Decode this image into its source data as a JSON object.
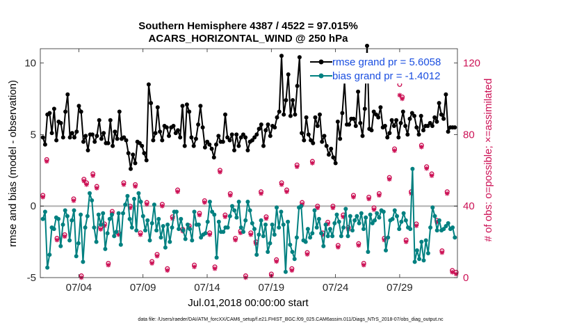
{
  "chart_data": {
    "type": "line",
    "title": [
      "Southern Hemisphere 4387 / 4522 = 97.015%",
      "ACARS_HORIZONTAL_WIND @ 250 hPa"
    ],
    "xlabel": "Jul.01,2018 00:00:00 start",
    "ylabel_left": "rmse and bias (model - observation)",
    "ylabel_right": "# of obs: o=possible; ×=assimilated",
    "x_ticks": [
      "07/04",
      "07/09",
      "07/14",
      "07/19",
      "07/24",
      "07/29"
    ],
    "x_tick_days": [
      4,
      9,
      14,
      19,
      24,
      29
    ],
    "xlim": [
      1.0,
      33.5
    ],
    "ylim_left": [
      -5,
      11
    ],
    "yticks_left": [
      -5,
      0,
      5,
      10
    ],
    "ylim_right": [
      0,
      128
    ],
    "yticks_right": [
      0,
      40,
      80,
      120
    ],
    "colors": {
      "rmse": "#000000",
      "bias": "#008080",
      "obs": "#cc1155",
      "zero": "#b0b0b0"
    },
    "series": [
      {
        "name": "rmse grand pr = 5.6058",
        "axis": "left",
        "values": [
          4.8,
          4.3,
          6.4,
          6.5,
          5.1,
          6.8,
          4.6,
          5.9,
          5.8,
          4.8,
          6.6,
          7.8,
          4.8,
          5.1,
          4.8,
          5.2,
          7.0,
          6.6,
          4.5,
          4.9,
          3.9,
          5.0,
          5.0,
          4.5,
          4.9,
          6.0,
          4.7,
          5.1,
          4.4,
          4.4,
          6.0,
          4.2,
          5.2,
          4.7,
          6.6,
          4.7,
          4.8,
          4.6,
          3.7,
          2.6,
          3.6,
          3.0,
          4.5,
          4.4,
          4.2,
          3.7,
          3.2,
          8.5,
          7.2,
          4.6,
          5.1,
          6.9,
          5.2,
          4.6,
          5.6,
          5.5,
          4.9,
          5.5,
          5.6,
          5.1,
          5.3,
          4.8,
          7.0,
          4.2,
          7.1,
          6.6,
          4.8,
          4.2,
          4.7,
          5.7,
          7.0,
          5.5,
          4.1,
          4.5,
          4.3,
          4.0,
          3.4,
          4.3,
          4.9,
          4.5,
          4.5,
          6.4,
          4.8,
          4.6,
          5.0,
          3.9,
          5.0,
          4.2,
          4.8,
          5.0,
          4.8,
          3.9,
          4.5,
          4.6,
          4.8,
          5.0,
          5.4,
          5.7,
          4.2,
          5.3,
          5.7,
          4.9,
          5.6,
          5.5,
          6.2,
          6.6,
          10.5,
          6.4,
          7.4,
          9.2,
          6.3,
          7.4,
          6.4,
          8.4,
          10.4,
          5.1,
          4.6,
          6.2,
          5.0,
          4.6,
          4.4,
          6.2,
          5.6,
          6.4,
          4.5,
          4.9,
          4.2,
          3.6,
          4.0,
          3.4,
          3.0,
          5.9,
          4.7,
          6.5,
          8.7,
          5.7,
          5.7,
          6.1,
          6.1,
          5.6,
          8.0,
          5.8,
          4.9,
          6.8,
          11.2,
          5.4,
          5.3,
          6.6,
          6.4,
          6.2,
          6.9,
          5.5,
          5.6,
          4.8,
          5.1,
          6.0,
          5.6,
          6.0,
          4.8,
          5.8,
          6.6,
          5.6,
          5.0,
          6.1,
          6.5,
          6.3,
          5.5,
          5.0,
          6.3,
          5.3,
          5.6,
          5.6,
          5.8,
          5.6,
          6.2,
          5.9,
          7.2,
          6.4,
          6.1,
          7.8,
          5.2,
          5.5,
          5.5,
          5.5
        ]
      },
      {
        "name": "bias grand pr = -1.4012",
        "axis": "left",
        "values": [
          -0.9,
          -0.4,
          -4.3,
          -3.4,
          -1.5,
          -1.6,
          -0.8,
          -0.9,
          -2.8,
          -1.3,
          -0.3,
          -0.7,
          -2.4,
          -1.0,
          -0.3,
          -3.5,
          -2.6,
          -0.6,
          -3.9,
          -1.5,
          -0.7,
          0.9,
          0.4,
          -1.5,
          -2.5,
          -0.6,
          -1.3,
          -0.5,
          -3.0,
          -1.9,
          -0.9,
          -0.6,
          -2.1,
          -1.8,
          -0.5,
          -2.7,
          -0.5,
          0.1,
          0.7,
          -0.9,
          -1.5,
          0.5,
          -1.7,
          0.9,
          0.3,
          -0.7,
          -1.7,
          -1.0,
          -2.4,
          -1.2,
          0.1,
          -1.7,
          -0.9,
          -2.2,
          -1.4,
          -2.9,
          -1.3,
          -2.5,
          -1.5,
          -0.4,
          -0.4,
          -1.6,
          -0.9,
          -1.7,
          -2.3,
          -1.3,
          -1.6,
          -2.4,
          -0.4,
          -1.3,
          -1.3,
          -2.2,
          -2.0,
          -1.9,
          -1.1,
          0.3,
          -0.4,
          -0.6,
          -3.6,
          -1.1,
          -1.8,
          -1.8,
          -1.5,
          -1.5,
          -0.7,
          0.0,
          -0.3,
          -0.8,
          0.3,
          -1.5,
          -1.8,
          -1.0,
          0.3,
          -0.3,
          -1.2,
          -1.6,
          -3.4,
          -2.0,
          -1.0,
          -2.1,
          -1.3,
          -3.2,
          -2.6,
          -1.3,
          -2.0,
          -0.1,
          -1.5,
          -0.4,
          -1.3,
          -4.6,
          -1.1,
          -2.7,
          -3.2,
          -3.7,
          -2.2,
          -0.1,
          0.0,
          -2.4,
          -2.5,
          -1.6,
          -2.2,
          -1.9,
          -0.3,
          -1.5,
          -0.9,
          -1.9,
          -2.8,
          -1.3,
          -2.1,
          -1.6,
          -2.1,
          -1.2,
          -0.6,
          -1.1,
          -2.1,
          -1.5,
          -0.2,
          -2.1,
          -0.7,
          -1.7,
          -1.0,
          -0.7,
          -1.2,
          -0.5,
          -1.6,
          -0.8,
          -3.2,
          -0.6,
          -1.2,
          -1.0,
          -0.5,
          -0.8,
          -0.3,
          -0.4,
          -3.1,
          -2.2,
          -1.0,
          -0.9,
          -0.3,
          -0.7,
          -1.6,
          -1.1,
          -0.5,
          -1.0,
          -1.5,
          -1.6,
          2.6,
          -3.9,
          -3.1,
          -3.7,
          -2.5,
          -3.8,
          -2.4,
          -3.3,
          -1.5,
          -0.1,
          -0.7,
          -1.7,
          -1.0,
          -1.7,
          -1.6,
          -1.4,
          -1.2,
          -1.6,
          -1.5,
          -2.2
        ]
      }
    ],
    "obs_possible": [
      [
        1.2,
        46
      ],
      [
        1.5,
        66
      ],
      [
        2.3,
        22
      ],
      [
        2.9,
        24
      ],
      [
        3.6,
        44
      ],
      [
        4.2,
        1
      ],
      [
        4.4,
        55
      ],
      [
        4.6,
        53
      ],
      [
        5.1,
        58
      ],
      [
        5.4,
        51
      ],
      [
        5.7,
        28
      ],
      [
        6.0,
        30
      ],
      [
        6.3,
        8
      ],
      [
        6.6,
        37
      ],
      [
        7.1,
        25
      ],
      [
        7.5,
        53
      ],
      [
        8.0,
        40
      ],
      [
        8.4,
        52
      ],
      [
        8.8,
        25
      ],
      [
        9.3,
        42
      ],
      [
        9.7,
        9
      ],
      [
        10.1,
        13
      ],
      [
        10.5,
        41
      ],
      [
        10.9,
        5
      ],
      [
        11.3,
        34
      ],
      [
        11.7,
        49
      ],
      [
        12.1,
        27
      ],
      [
        12.6,
        29
      ],
      [
        13.0,
        7
      ],
      [
        13.4,
        36
      ],
      [
        13.8,
        43
      ],
      [
        14.2,
        25
      ],
      [
        14.6,
        6
      ],
      [
        15.0,
        60
      ],
      [
        15.4,
        35
      ],
      [
        15.8,
        47
      ],
      [
        16.2,
        22
      ],
      [
        16.6,
        26
      ],
      [
        17.0,
        1
      ],
      [
        17.4,
        25
      ],
      [
        17.8,
        20
      ],
      [
        18.2,
        48
      ],
      [
        18.6,
        34
      ],
      [
        19.0,
        2
      ],
      [
        19.4,
        10
      ],
      [
        19.8,
        53
      ],
      [
        20.2,
        49
      ],
      [
        20.6,
        5
      ],
      [
        21.0,
        63
      ],
      [
        21.4,
        42
      ],
      [
        21.8,
        14
      ],
      [
        22.2,
        65
      ],
      [
        22.6,
        40
      ],
      [
        23.0,
        25
      ],
      [
        23.4,
        31
      ],
      [
        23.8,
        40
      ],
      [
        24.2,
        18
      ],
      [
        24.6,
        35
      ],
      [
        25.0,
        28
      ],
      [
        25.4,
        46
      ],
      [
        25.8,
        19
      ],
      [
        26.2,
        8
      ],
      [
        26.6,
        45
      ],
      [
        27.0,
        39
      ],
      [
        27.4,
        47
      ],
      [
        27.8,
        22
      ],
      [
        28.2,
        56
      ],
      [
        28.6,
        72
      ],
      [
        29.0,
        108
      ],
      [
        29.2,
        101
      ],
      [
        29.5,
        21
      ],
      [
        29.9,
        48
      ],
      [
        30.3,
        30
      ],
      [
        30.7,
        74
      ],
      [
        31.1,
        62
      ],
      [
        31.5,
        58
      ],
      [
        31.9,
        32
      ],
      [
        32.3,
        15
      ],
      [
        32.7,
        48
      ],
      [
        33.1,
        4
      ],
      [
        33.4,
        3
      ]
    ],
    "obs_assimilated": [
      [
        1.2,
        45
      ],
      [
        1.5,
        65
      ],
      [
        2.3,
        21
      ],
      [
        2.9,
        23
      ],
      [
        3.6,
        43
      ],
      [
        4.2,
        0
      ],
      [
        4.4,
        54
      ],
      [
        4.6,
        52
      ],
      [
        5.1,
        57
      ],
      [
        5.4,
        50
      ],
      [
        5.7,
        27
      ],
      [
        6.0,
        29
      ],
      [
        6.3,
        7
      ],
      [
        6.6,
        36
      ],
      [
        7.1,
        24
      ],
      [
        7.5,
        52
      ],
      [
        8.0,
        39
      ],
      [
        8.4,
        51
      ],
      [
        8.8,
        24
      ],
      [
        9.3,
        41
      ],
      [
        9.7,
        8
      ],
      [
        10.1,
        12
      ],
      [
        10.5,
        40
      ],
      [
        10.9,
        4
      ],
      [
        11.3,
        33
      ],
      [
        11.7,
        48
      ],
      [
        12.1,
        26
      ],
      [
        12.6,
        28
      ],
      [
        13.0,
        6
      ],
      [
        13.4,
        35
      ],
      [
        13.8,
        42
      ],
      [
        14.2,
        24
      ],
      [
        14.6,
        5
      ],
      [
        15.0,
        59
      ],
      [
        15.4,
        34
      ],
      [
        15.8,
        46
      ],
      [
        16.2,
        21
      ],
      [
        16.6,
        25
      ],
      [
        17.0,
        0
      ],
      [
        17.4,
        24
      ],
      [
        17.8,
        19
      ],
      [
        18.2,
        47
      ],
      [
        18.6,
        33
      ],
      [
        19.0,
        1
      ],
      [
        19.4,
        9
      ],
      [
        19.8,
        52
      ],
      [
        20.2,
        48
      ],
      [
        20.6,
        4
      ],
      [
        21.0,
        62
      ],
      [
        21.4,
        41
      ],
      [
        21.8,
        13
      ],
      [
        22.2,
        64
      ],
      [
        22.6,
        39
      ],
      [
        23.0,
        24
      ],
      [
        23.4,
        30
      ],
      [
        23.8,
        39
      ],
      [
        24.2,
        17
      ],
      [
        24.6,
        34
      ],
      [
        25.0,
        27
      ],
      [
        25.4,
        45
      ],
      [
        25.8,
        18
      ],
      [
        26.2,
        7
      ],
      [
        26.6,
        44
      ],
      [
        27.0,
        38
      ],
      [
        27.4,
        46
      ],
      [
        27.8,
        21
      ],
      [
        28.2,
        55
      ],
      [
        28.6,
        71
      ],
      [
        29.0,
        102
      ],
      [
        29.2,
        100
      ],
      [
        29.5,
        20
      ],
      [
        29.9,
        47
      ],
      [
        30.3,
        29
      ],
      [
        30.7,
        73
      ],
      [
        31.1,
        61
      ],
      [
        31.5,
        57
      ],
      [
        31.9,
        31
      ],
      [
        32.3,
        14
      ],
      [
        32.7,
        47
      ],
      [
        33.1,
        3
      ],
      [
        33.4,
        2
      ]
    ]
  },
  "footer": "data file: /Users/raeder/DAI/ATM_forcXX/CAM6_setup/f.e21.FHIST_BGC.f09_025.CAM6assim.011/Diags_NTrS_2018-07/obs_diag_output.nc"
}
